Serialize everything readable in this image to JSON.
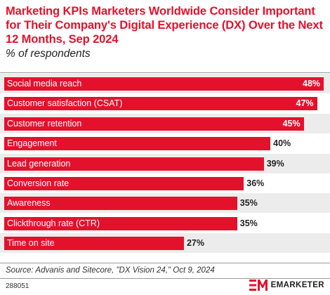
{
  "chart_data": {
    "type": "bar",
    "orientation": "horizontal",
    "title": "Marketing KPIs Marketers Worldwide Consider Important for Their Company's Digital Experience (DX) Over the Next 12 Months, Sep 2024",
    "subtitle": "% of respondents",
    "categories": [
      "Social media reach",
      "Customer satisfaction (CSAT)",
      "Customer retention",
      "Engagement",
      "Lead generation",
      "Conversion rate",
      "Awareness",
      "Clickthrough rate (CTR)",
      "Time on site"
    ],
    "values": [
      48,
      47,
      45,
      40,
      39,
      36,
      35,
      35,
      27
    ],
    "value_labels": [
      "48%",
      "47%",
      "45%",
      "40%",
      "39%",
      "36%",
      "35%",
      "35%",
      "27%"
    ],
    "xlim": [
      0,
      48
    ],
    "bar_color": "#e4112d",
    "source": "Source: Advanis and Sitecore, \"DX Vision 24,\" Oct 9, 2024"
  },
  "footer": {
    "chart_id": "288051",
    "brand": "EMARKETER",
    "brand_color": "#e4112d",
    "logo_icon": "em-logo-icon"
  }
}
